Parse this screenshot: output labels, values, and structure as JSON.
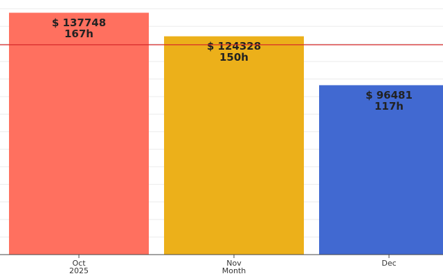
{
  "chart_data": {
    "type": "bar",
    "categories": [
      "Oct",
      "Nov",
      "Dec"
    ],
    "x_year_label": "2025",
    "x_label": "Month",
    "values": [
      137748,
      124328,
      96481
    ],
    "value_labels": [
      "$ 137748",
      "$ 124328",
      "$ 96481"
    ],
    "hours_labels": [
      "167h",
      "150h",
      "117h"
    ],
    "colors": [
      "#ff705f",
      "#ecb01a",
      "#4169d1"
    ],
    "ylim": [
      0,
      145000
    ],
    "yticks": [
      0,
      10000,
      20000,
      30000,
      40000,
      50000,
      60000,
      70000,
      80000,
      90000,
      100000,
      110000,
      120000,
      130000,
      140000
    ],
    "grid": true,
    "reference_line": {
      "value": 119500,
      "color": "#d62728"
    }
  }
}
